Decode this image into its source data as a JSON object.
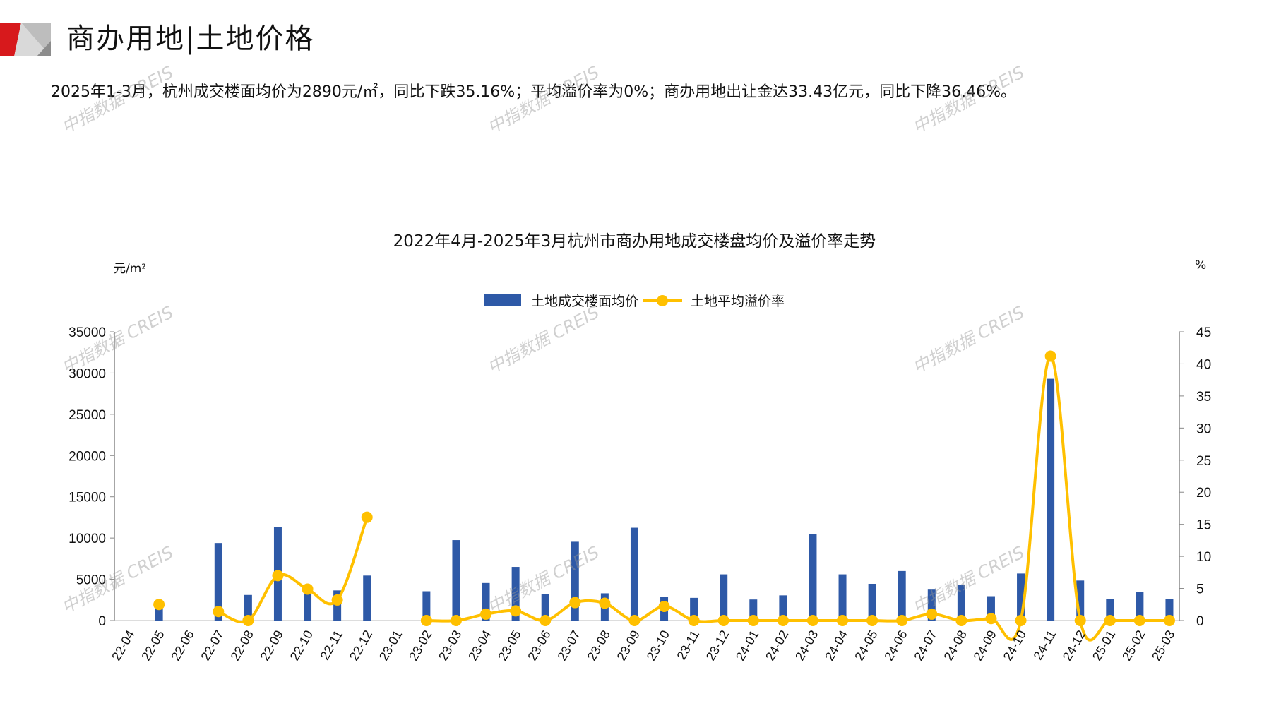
{
  "header": {
    "title": "商办用地|土地价格",
    "summary": "2025年1-3月，杭州成交楼面均价为2890元/㎡，同比下跌35.16%；平均溢价率为0%；商办用地出让金达33.43亿元，同比下降36.46%。"
  },
  "watermark": "中指数据 CREIS",
  "colors": {
    "bar": "#2E59A7",
    "line": "#FFC000",
    "logo_red": "#D7191C",
    "logo_gray": "#BDBDBD"
  },
  "chart_data": {
    "type": "bar+line",
    "title": "2022年4月-2025年3月杭州市商办用地成交楼盘均价及溢价率走势",
    "y_left_label": "元/m²",
    "y_right_label": "%",
    "y_left_lim": [
      0,
      35000
    ],
    "y_right_lim": [
      0,
      45
    ],
    "y_left_ticks": [
      "0",
      "5000",
      "10000",
      "15000",
      "20000",
      "25000",
      "30000",
      "35000"
    ],
    "y_right_ticks": [
      "0",
      "5",
      "10",
      "15",
      "20",
      "25",
      "30",
      "35",
      "40",
      "45"
    ],
    "legend_position": "top",
    "grid": false,
    "categories": [
      "22-04",
      "22-05",
      "22-06",
      "22-07",
      "22-08",
      "22-09",
      "22-10",
      "22-11",
      "22-12",
      "23-01",
      "23-02",
      "23-03",
      "23-04",
      "23-05",
      "23-06",
      "23-07",
      "23-08",
      "23-09",
      "23-10",
      "23-11",
      "23-12",
      "24-01",
      "24-02",
      "24-03",
      "24-04",
      "24-05",
      "24-06",
      "24-07",
      "24-08",
      "24-09",
      "24-10",
      "24-11",
      "24-12",
      "25-01",
      "25-02",
      "25-03"
    ],
    "series": [
      {
        "name": "土地成交楼面均价",
        "type": "bar",
        "axis": "left",
        "values": [
          null,
          1500,
          null,
          9400,
          3100,
          11300,
          4000,
          3650,
          5450,
          null,
          3550,
          9750,
          4550,
          6500,
          3250,
          9550,
          3300,
          11250,
          2850,
          2750,
          5600,
          2550,
          3050,
          10450,
          5600,
          4450,
          6000,
          3750,
          4350,
          2950,
          5700,
          29300,
          4850,
          2650,
          3450,
          2650
        ]
      },
      {
        "name": "土地平均溢价率",
        "type": "line",
        "axis": "right",
        "smooth": true,
        "values": [
          null,
          2.5,
          null,
          1.4,
          0,
          7.0,
          4.9,
          3.2,
          16.1,
          null,
          0,
          0,
          1.0,
          1.5,
          0,
          2.8,
          2.7,
          0,
          2.2,
          0,
          0,
          0,
          0,
          0,
          0,
          0,
          0,
          1.0,
          0,
          0.3,
          0,
          41.2,
          0,
          0,
          0,
          0
        ]
      }
    ]
  }
}
